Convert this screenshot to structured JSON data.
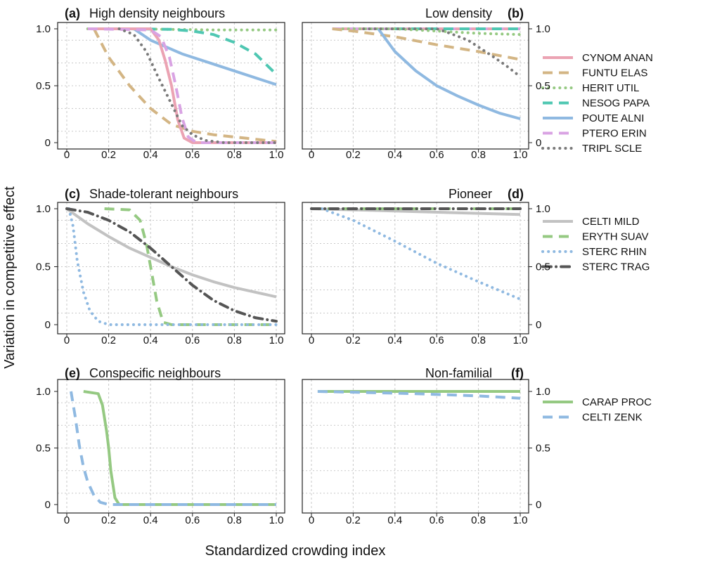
{
  "chart_data": {
    "type": "line",
    "ylabel": "Variation in competitive effect",
    "xlabel": "Standardized crowding index",
    "xlim": [
      0,
      1
    ],
    "ylim": [
      0,
      1
    ],
    "xticks": [
      "0",
      "0.2",
      "0.4",
      "0.6",
      "0.8",
      "1.0"
    ],
    "yticks": [
      "0",
      "0.5",
      "1.0"
    ],
    "grid": true,
    "styles": {
      "CYNOM ANAN": {
        "color": "#EBA3B3",
        "dash": "solid"
      },
      "FUNTU ELAS": {
        "color": "#D3B584",
        "dash": "dashed"
      },
      "HERIT UTIL": {
        "color": "#95C982",
        "dash": "dotted"
      },
      "NESOG PAPA": {
        "color": "#4FC7B2",
        "dash": "dashed"
      },
      "POUTE ALNI": {
        "color": "#8FB9E1",
        "dash": "solid"
      },
      "PTERO ERIN": {
        "color": "#D9A3E3",
        "dash": "dashed"
      },
      "TRIPL SCLE": {
        "color": "#7A7A7A",
        "dash": "dotted"
      },
      "CELTI MILD": {
        "color": "#C2C2C2",
        "dash": "solid"
      },
      "ERYTH SUAV": {
        "color": "#95C982",
        "dash": "dashed"
      },
      "STERC RHIN": {
        "color": "#8FB9E1",
        "dash": "dotted"
      },
      "STERC TRAG": {
        "color": "#555555",
        "dash": "dashdot"
      },
      "CARAP PROC": {
        "color": "#95C982",
        "dash": "solid"
      },
      "CELTI ZENK": {
        "color": "#8FB9E1",
        "dash": "dashed"
      }
    },
    "panels": [
      {
        "tag": "(a)",
        "title": "High density neighbours",
        "row": 0,
        "col": 0,
        "legend": [
          "CYNOM ANAN",
          "FUNTU ELAS",
          "HERIT UTIL",
          "NESOG PAPA",
          "POUTE ALNI",
          "PTERO ERIN",
          "TRIPL SCLE"
        ],
        "series": [
          {
            "name": "HERIT UTIL",
            "x": [
              0.1,
              0.3,
              0.5,
              0.7,
              1.0
            ],
            "y": [
              1,
              1,
              0.995,
              0.99,
              0.99
            ]
          },
          {
            "name": "NESOG PAPA",
            "x": [
              0.3,
              0.5,
              0.6,
              0.7,
              0.8,
              0.9,
              1.0
            ],
            "y": [
              1,
              0.995,
              0.98,
              0.95,
              0.88,
              0.78,
              0.6
            ]
          },
          {
            "name": "POUTE ALNI",
            "x": [
              0.32,
              0.4,
              0.55,
              0.7,
              0.85,
              1.0
            ],
            "y": [
              1,
              0.9,
              0.78,
              0.69,
              0.6,
              0.51
            ]
          },
          {
            "name": "FUNTU ELAS",
            "x": [
              0.13,
              0.2,
              0.3,
              0.4,
              0.5,
              0.6,
              0.7,
              0.8,
              0.9,
              1.0
            ],
            "y": [
              1,
              0.75,
              0.5,
              0.3,
              0.16,
              0.1,
              0.07,
              0.05,
              0.03,
              0.01
            ]
          },
          {
            "name": "CYNOM ANAN",
            "x": [
              0.1,
              0.4,
              0.44,
              0.47,
              0.5,
              0.53,
              0.56,
              0.6,
              0.8,
              1.0
            ],
            "y": [
              1,
              1,
              0.9,
              0.72,
              0.5,
              0.2,
              0.04,
              0,
              0,
              0
            ]
          },
          {
            "name": "PTERO ERIN",
            "x": [
              0.1,
              0.4,
              0.45,
              0.49,
              0.52,
              0.55,
              0.58,
              0.62,
              0.8,
              1.0
            ],
            "y": [
              1,
              0.99,
              0.93,
              0.75,
              0.5,
              0.22,
              0.05,
              0,
              0,
              0
            ]
          },
          {
            "name": "TRIPL SCLE",
            "x": [
              0.25,
              0.32,
              0.38,
              0.43,
              0.47,
              0.51,
              0.55,
              0.6,
              0.66,
              0.75,
              1.0
            ],
            "y": [
              1,
              0.95,
              0.8,
              0.6,
              0.45,
              0.3,
              0.15,
              0.07,
              0.02,
              0,
              0
            ]
          }
        ]
      },
      {
        "tag": "(b)",
        "title": "Low density",
        "row": 0,
        "col": 1,
        "legend": [],
        "series": [
          {
            "name": "CYNOM ANAN",
            "x": [
              0.1,
              1.0
            ],
            "y": [
              1,
              1
            ]
          },
          {
            "name": "PTERO ERIN",
            "x": [
              0.1,
              1.0
            ],
            "y": [
              1,
              1
            ]
          },
          {
            "name": "NESOG PAPA",
            "x": [
              0.4,
              1.0
            ],
            "y": [
              1,
              1
            ]
          },
          {
            "name": "HERIT UTIL",
            "x": [
              0.15,
              0.4,
              0.6,
              0.8,
              1.0
            ],
            "y": [
              1,
              1,
              0.98,
              0.96,
              0.95
            ]
          },
          {
            "name": "FUNTU ELAS",
            "x": [
              0.1,
              0.2,
              0.4,
              0.6,
              0.8,
              1.0
            ],
            "y": [
              1,
              0.98,
              0.93,
              0.86,
              0.8,
              0.73
            ]
          },
          {
            "name": "POUTE ALNI",
            "x": [
              0.32,
              0.4,
              0.5,
              0.6,
              0.7,
              0.8,
              0.9,
              1.0
            ],
            "y": [
              1,
              0.8,
              0.63,
              0.5,
              0.41,
              0.33,
              0.26,
              0.21
            ]
          },
          {
            "name": "TRIPL SCLE",
            "x": [
              0.25,
              0.6,
              0.65,
              0.75,
              0.85,
              0.93,
              1.0
            ],
            "y": [
              1,
              1,
              0.97,
              0.9,
              0.78,
              0.68,
              0.58
            ]
          }
        ]
      },
      {
        "tag": "(c)",
        "title": "Shade-tolerant neighbours",
        "row": 1,
        "col": 0,
        "legend": [
          "CELTI MILD",
          "ERYTH SUAV",
          "STERC RHIN",
          "STERC TRAG"
        ],
        "series": [
          {
            "name": "CELTI MILD",
            "x": [
              0,
              0.1,
              0.2,
              0.3,
              0.4,
              0.5,
              0.6,
              0.7,
              0.8,
              0.9,
              1.0
            ],
            "y": [
              1,
              0.87,
              0.76,
              0.66,
              0.58,
              0.5,
              0.43,
              0.37,
              0.32,
              0.28,
              0.24
            ]
          },
          {
            "name": "ERYTH SUAV",
            "x": [
              0.18,
              0.3,
              0.35,
              0.38,
              0.4,
              0.43,
              0.46,
              0.5,
              1.0
            ],
            "y": [
              1,
              0.99,
              0.9,
              0.7,
              0.5,
              0.2,
              0.02,
              0,
              0
            ]
          },
          {
            "name": "STERC RHIN",
            "x": [
              0.01,
              0.03,
              0.05,
              0.08,
              0.11,
              0.15,
              0.2,
              1.0
            ],
            "y": [
              1,
              0.85,
              0.55,
              0.28,
              0.12,
              0.03,
              0,
              0
            ]
          },
          {
            "name": "STERC TRAG",
            "x": [
              0,
              0.1,
              0.2,
              0.3,
              0.4,
              0.5,
              0.6,
              0.7,
              0.8,
              0.9,
              1.0
            ],
            "y": [
              1,
              0.97,
              0.9,
              0.8,
              0.66,
              0.5,
              0.34,
              0.21,
              0.12,
              0.06,
              0.03
            ]
          }
        ]
      },
      {
        "tag": "(d)",
        "title": "Pioneer",
        "row": 1,
        "col": 1,
        "legend": [],
        "series": [
          {
            "name": "CELTI MILD",
            "x": [
              0,
              0.5,
              1.0
            ],
            "y": [
              1,
              0.975,
              0.95
            ]
          },
          {
            "name": "STERC RHIN",
            "x": [
              0.05,
              0.2,
              0.4,
              0.6,
              0.8,
              1.0
            ],
            "y": [
              1,
              0.9,
              0.72,
              0.53,
              0.37,
              0.22
            ]
          },
          {
            "name": "ERYTH SUAV",
            "x": [
              0,
              1.0
            ],
            "y": [
              1,
              1
            ]
          },
          {
            "name": "STERC TRAG",
            "x": [
              0,
              1.0
            ],
            "y": [
              1,
              1
            ]
          }
        ]
      },
      {
        "tag": "(e)",
        "title": "Conspecific neighbours",
        "row": 2,
        "col": 0,
        "legend": [
          "CARAP PROC",
          "CELTI ZENK"
        ],
        "series": [
          {
            "name": "CARAP PROC",
            "x": [
              0.08,
              0.15,
              0.17,
              0.19,
              0.2,
              0.21,
              0.23,
              0.25,
              1.0
            ],
            "y": [
              1,
              0.98,
              0.88,
              0.65,
              0.5,
              0.3,
              0.06,
              0,
              0
            ]
          },
          {
            "name": "CELTI ZENK",
            "x": [
              0.02,
              0.04,
              0.06,
              0.08,
              0.1,
              0.13,
              0.16,
              0.2,
              1.0
            ],
            "y": [
              1,
              0.78,
              0.52,
              0.33,
              0.2,
              0.08,
              0.02,
              0,
              0
            ]
          }
        ]
      },
      {
        "tag": "(f)",
        "title": "Non-familial",
        "row": 2,
        "col": 1,
        "legend": [],
        "series": [
          {
            "name": "CARAP PROC",
            "x": [
              0.03,
              1.0
            ],
            "y": [
              1,
              1
            ]
          },
          {
            "name": "CELTI ZENK",
            "x": [
              0.03,
              0.5,
              0.8,
              1.0
            ],
            "y": [
              1,
              0.98,
              0.96,
              0.94
            ]
          }
        ]
      }
    ]
  }
}
